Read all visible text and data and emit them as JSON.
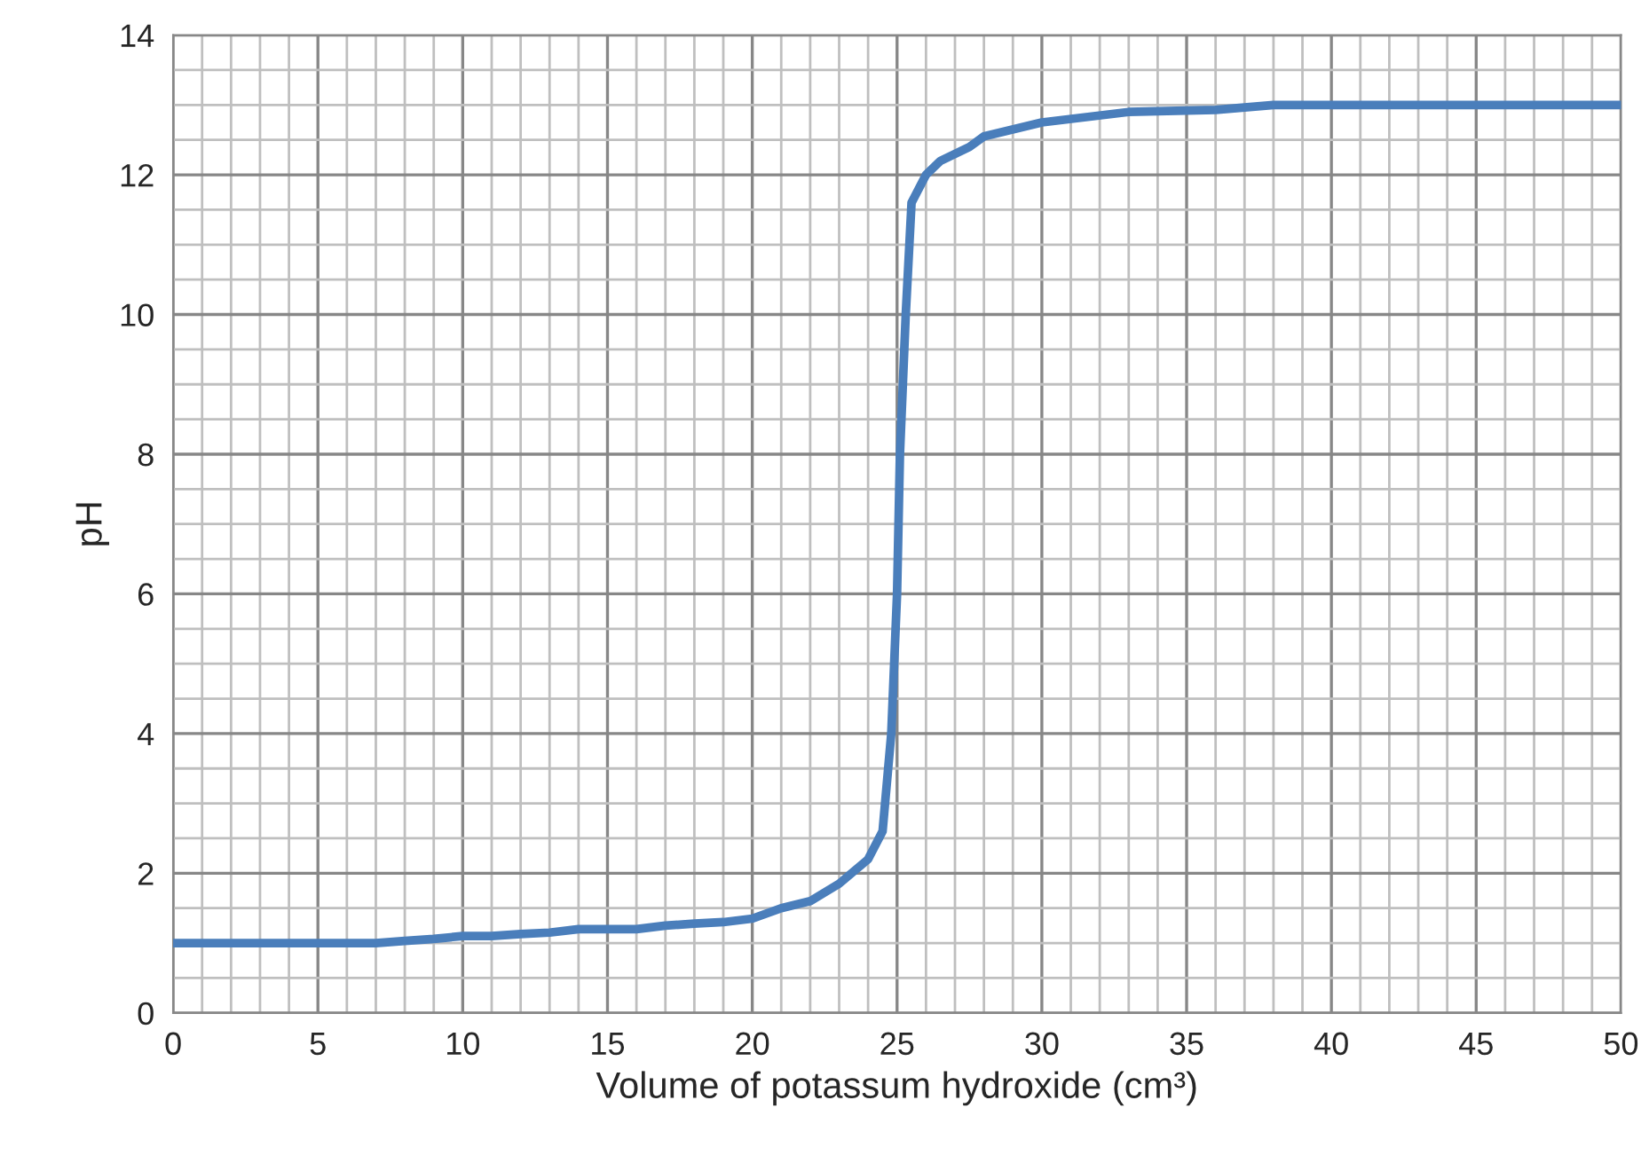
{
  "chart_data": {
    "type": "line",
    "xlabel": "Volume of potassum hydroxide (cm³)",
    "ylabel": "pH",
    "series": [
      {
        "color": "#4a7ebb",
        "x": [
          0,
          5,
          7,
          8,
          9,
          10,
          11,
          12,
          13,
          14,
          15,
          16,
          17,
          18,
          19,
          20,
          21,
          22,
          23,
          24,
          24.5,
          24.8,
          25,
          25.1,
          25.3,
          25.5,
          26,
          26.5,
          27.5,
          28,
          30,
          33,
          36,
          38,
          50
        ],
        "values": [
          1,
          1,
          1,
          1.03,
          1.06,
          1.1,
          1.1,
          1.13,
          1.15,
          1.2,
          1.2,
          1.2,
          1.25,
          1.28,
          1.3,
          1.35,
          1.5,
          1.6,
          1.85,
          2.2,
          2.6,
          4,
          6,
          8,
          10,
          11.6,
          12,
          12.2,
          12.4,
          12.55,
          12.75,
          12.9,
          12.93,
          13,
          13
        ]
      }
    ],
    "xlim": [
      0,
      50
    ],
    "xticks": [
      0,
      5,
      10,
      15,
      20,
      25,
      30,
      35,
      40,
      45,
      50
    ],
    "ylim": [
      0,
      14
    ],
    "yticks": [
      0,
      2,
      4,
      6,
      8,
      10,
      12,
      14
    ],
    "grid": true,
    "legend": false,
    "marker": "none",
    "line_style": "solid"
  }
}
